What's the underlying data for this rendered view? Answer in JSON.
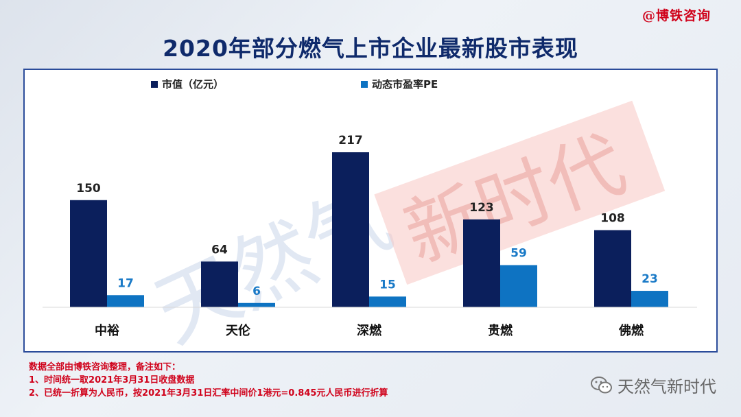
{
  "brand": "@博铁咨询",
  "chart_data": {
    "type": "bar",
    "title": "2020年部分燃气上市企业最新股市表现",
    "categories": [
      "中裕",
      "天伦",
      "深燃",
      "贵燃",
      "佛燃"
    ],
    "series": [
      {
        "name": "市值（亿元）",
        "values": [
          150,
          64,
          217,
          123,
          108
        ],
        "color": "#0b1f5c"
      },
      {
        "name": "动态市盈率PE",
        "values": [
          17,
          6,
          15,
          59,
          23
        ],
        "color": "#0e73c2"
      }
    ],
    "ylim": [
      0,
      217
    ],
    "legend": "top-left",
    "grid": false
  },
  "watermark": {
    "text": "天然气",
    "banner": "新时代"
  },
  "notes": [
    "数据全部由博铁咨询整理，备注如下：",
    "1、时间统一取2021年3月31日收盘数据",
    "2、已统一折算为人民币，按2021年3月31日汇率中间价1港元=0.845元人民币进行折算"
  ],
  "account": {
    "name": "天然气新时代",
    "icon": "wechat-icon"
  }
}
